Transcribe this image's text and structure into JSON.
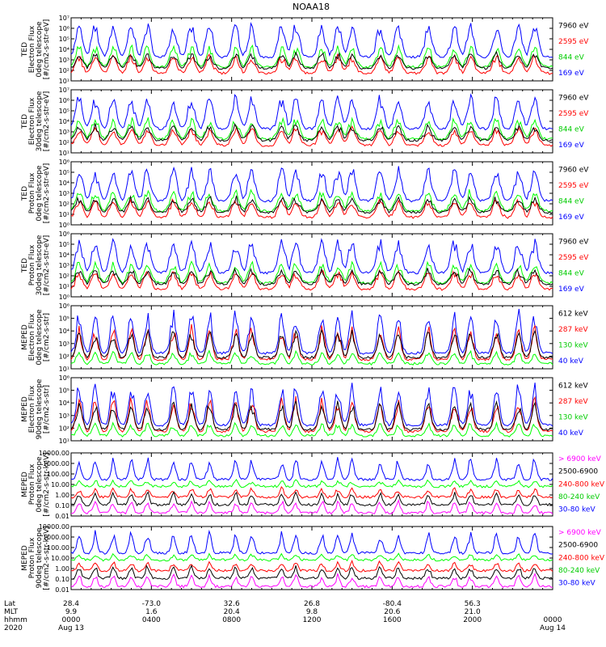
{
  "title": "NOAA18",
  "colors": {
    "blue": "#0000ff",
    "red": "#ff0000",
    "green": "#00ff00",
    "black": "#000000",
    "magenta": "#ff00ff"
  },
  "footer": {
    "row_labels": [
      "Lat",
      "MLT",
      "hhmm",
      "2020"
    ],
    "columns": [
      {
        "lat": "28.4",
        "mlt": "9.9",
        "hhmm": "0000",
        "date": "Aug 13"
      },
      {
        "lat": "-73.0",
        "mlt": "1.6",
        "hhmm": "0400",
        "date": ""
      },
      {
        "lat": "32.6",
        "mlt": "20.4",
        "hhmm": "0800",
        "date": ""
      },
      {
        "lat": "26.8",
        "mlt": "9.8",
        "hhmm": "1200",
        "date": ""
      },
      {
        "lat": "-80.4",
        "mlt": "20.6",
        "hhmm": "1600",
        "date": ""
      },
      {
        "lat": "56.3",
        "mlt": "21.0",
        "hhmm": "2000",
        "date": ""
      },
      {
        "lat": "",
        "mlt": "",
        "hhmm": "0000",
        "date": "Aug 14"
      }
    ]
  },
  "chart_data": [
    {
      "type": "line",
      "ylabel": [
        "TED",
        "Electron Flux",
        "0deg telescope",
        "[#/cm2-s-str-eV]"
      ],
      "yscale": "log",
      "ylim": [
        10,
        10000000
      ],
      "yticks": [
        "10¹",
        "10²",
        "10³",
        "10⁴",
        "10⁵",
        "10⁶",
        "10⁷"
      ],
      "x_hours": [
        0,
        24
      ],
      "series": [
        {
          "name": "7960 eV",
          "color": "#000000"
        },
        {
          "name": "2595 eV",
          "color": "#ff0000"
        },
        {
          "name": "844 eV",
          "color": "#00ff00"
        },
        {
          "name": "169 eV",
          "color": "#0000ff"
        }
      ]
    },
    {
      "type": "line",
      "ylabel": [
        "TED",
        "Electron Flux",
        "30deg telescope",
        "[#/cm2-s-str-eV]"
      ],
      "yscale": "log",
      "ylim": [
        10,
        10000000
      ],
      "yticks": [
        "10¹",
        "10²",
        "10³",
        "10⁴",
        "10⁵",
        "10⁶",
        "10⁷"
      ],
      "x_hours": [
        0,
        24
      ],
      "series": [
        {
          "name": "7960 eV",
          "color": "#000000"
        },
        {
          "name": "2595 eV",
          "color": "#ff0000"
        },
        {
          "name": "844 eV",
          "color": "#00ff00"
        },
        {
          "name": "169 eV",
          "color": "#0000ff"
        }
      ]
    },
    {
      "type": "line",
      "ylabel": [
        "TED",
        "Proton Flux",
        "0deg telescope",
        "[#/cm2-s-str-eV]"
      ],
      "yscale": "log",
      "ylim": [
        1,
        1000000
      ],
      "yticks": [
        "10⁰",
        "10¹",
        "10²",
        "10³",
        "10⁴",
        "10⁵",
        "10⁶"
      ],
      "x_hours": [
        0,
        24
      ],
      "series": [
        {
          "name": "7960 eV",
          "color": "#000000"
        },
        {
          "name": "2595 eV",
          "color": "#ff0000"
        },
        {
          "name": "844 eV",
          "color": "#00ff00"
        },
        {
          "name": "169 eV",
          "color": "#0000ff"
        }
      ]
    },
    {
      "type": "line",
      "ylabel": [
        "TED",
        "Proton Flux",
        "30deg telescope",
        "[#/cm2-s-str-eV]"
      ],
      "yscale": "log",
      "ylim": [
        1,
        1000000
      ],
      "yticks": [
        "10⁰",
        "10¹",
        "10²",
        "10³",
        "10⁴",
        "10⁵",
        "10⁶"
      ],
      "x_hours": [
        0,
        24
      ],
      "series": [
        {
          "name": "7960 eV",
          "color": "#000000"
        },
        {
          "name": "2595 eV",
          "color": "#ff0000"
        },
        {
          "name": "844 eV",
          "color": "#00ff00"
        },
        {
          "name": "169 eV",
          "color": "#0000ff"
        }
      ]
    },
    {
      "type": "line",
      "ylabel": [
        "MEPED",
        "Electron Flux",
        "0deg telescope",
        "[#/cm2-s-str]"
      ],
      "yscale": "log",
      "ylim": [
        10,
        1000000
      ],
      "yticks": [
        "10¹",
        "10²",
        "10³",
        "10⁴",
        "10⁵",
        "10⁶"
      ],
      "x_hours": [
        0,
        24
      ],
      "series": [
        {
          "name": "612 keV",
          "color": "#000000"
        },
        {
          "name": "287 keV",
          "color": "#ff0000"
        },
        {
          "name": "130 keV",
          "color": "#00ff00"
        },
        {
          "name": "40 keV",
          "color": "#0000ff"
        }
      ]
    },
    {
      "type": "line",
      "ylabel": [
        "MEPED",
        "Electron Flux",
        "90deg telescope",
        "[#/cm2-s-str]"
      ],
      "yscale": "log",
      "ylim": [
        10,
        1000000
      ],
      "yticks": [
        "10¹",
        "10²",
        "10³",
        "10⁴",
        "10⁵",
        "10⁶"
      ],
      "x_hours": [
        0,
        24
      ],
      "series": [
        {
          "name": "612 keV",
          "color": "#000000"
        },
        {
          "name": "287 keV",
          "color": "#ff0000"
        },
        {
          "name": "130 keV",
          "color": "#00ff00"
        },
        {
          "name": "40 keV",
          "color": "#0000ff"
        }
      ]
    },
    {
      "type": "line",
      "ylabel": [
        "MEPED",
        "Proton Flux",
        "0deg telescope",
        "[#/cm2-s-str-keV]"
      ],
      "yscale": "log",
      "ylim": [
        0.01,
        10000
      ],
      "yticks": [
        "0.01",
        "0.10",
        "1.00",
        "10.00",
        "100.00",
        "1000.00",
        "10000.00"
      ],
      "x_hours": [
        0,
        24
      ],
      "series": [
        {
          "name": "> 6900 keV",
          "color": "#ff00ff"
        },
        {
          "name": "2500-6900",
          "color": "#000000"
        },
        {
          "name": "240-800 keV",
          "color": "#ff0000"
        },
        {
          "name": "80-240 keV",
          "color": "#00ff00"
        },
        {
          "name": "30-80 keV",
          "color": "#0000ff"
        }
      ]
    },
    {
      "type": "line",
      "ylabel": [
        "MEPED",
        "Proton Flux",
        "90deg telescope",
        "[#/cm2-s-str-keV]"
      ],
      "yscale": "log",
      "ylim": [
        0.01,
        10000
      ],
      "yticks": [
        "0.01",
        "0.10",
        "1.00",
        "10.00",
        "100.00",
        "1000.00",
        "10000.00"
      ],
      "x_hours": [
        0,
        24
      ],
      "series": [
        {
          "name": "> 6900 keV",
          "color": "#ff00ff"
        },
        {
          "name": "2500-6900",
          "color": "#000000"
        },
        {
          "name": "240-800 keV",
          "color": "#ff0000"
        },
        {
          "name": "80-240 keV",
          "color": "#00ff00"
        },
        {
          "name": "30-80 keV",
          "color": "#0000ff"
        }
      ]
    }
  ]
}
